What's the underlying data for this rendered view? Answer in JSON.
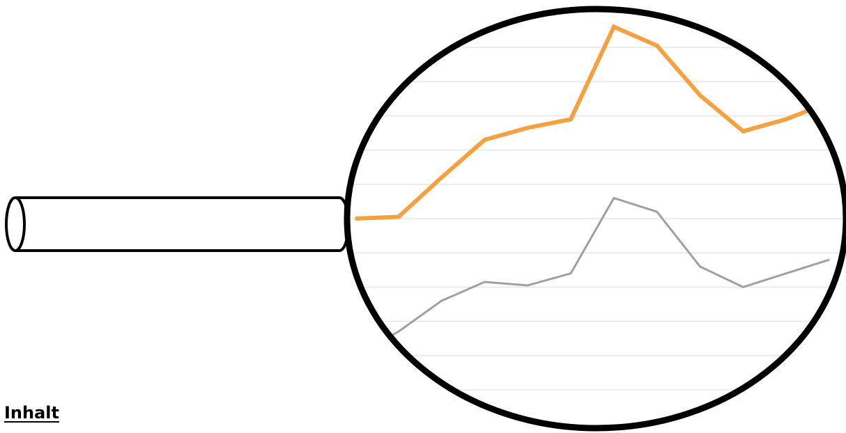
{
  "heading": {
    "text": "Inhalt"
  },
  "magnifier": {
    "icon": "magnifying-glass-icon",
    "rim_color": "#000000",
    "handle_color": "#000000",
    "gridline_color": "#e6e6e6"
  },
  "chart_data": {
    "type": "line",
    "title": "",
    "xlabel": "",
    "ylabel": "",
    "x": [
      0,
      1,
      2,
      3,
      4,
      5,
      6,
      7,
      8,
      9,
      10,
      11
    ],
    "ylim": [
      0,
      10
    ],
    "grid": true,
    "legend": "none",
    "series": [
      {
        "color": "#f7a040",
        "values": [
          5.0,
          5.05,
          6.2,
          7.3,
          7.65,
          7.9,
          10.6,
          10.05,
          8.6,
          7.55,
          7.9,
          8.4
        ]
      },
      {
        "color": "#a0a0a0",
        "values": [
          1.0,
          1.7,
          2.6,
          3.15,
          3.05,
          3.4,
          5.6,
          5.2,
          3.6,
          3.0,
          3.4,
          3.8
        ]
      }
    ]
  }
}
